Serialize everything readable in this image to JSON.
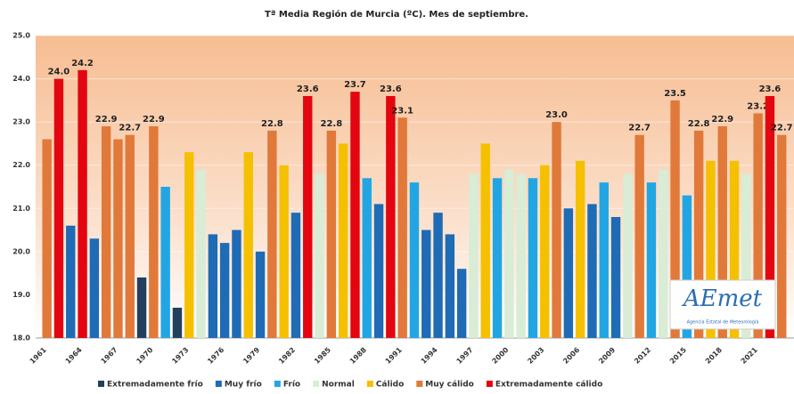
{
  "chart_data": {
    "type": "bar",
    "title": "Tª Media Región de Murcia (ºC). Mes de septiembre.",
    "categories": [
      "1961",
      null,
      null,
      "1964",
      null,
      null,
      "1967",
      null,
      null,
      "1970",
      null,
      null,
      "1973",
      null,
      null,
      "1976",
      null,
      null,
      "1979",
      null,
      null,
      "1982",
      null,
      null,
      "1985",
      null,
      null,
      "1988",
      null,
      null,
      "1991",
      null,
      null,
      "1994",
      null,
      null,
      "1997",
      null,
      null,
      "2000",
      null,
      null,
      "2003",
      null,
      null,
      "2006",
      null,
      null,
      "2009",
      null,
      null,
      "2012",
      null,
      null,
      "2015",
      null,
      null,
      "2018",
      null,
      null,
      "2021",
      null,
      null
    ],
    "values": [
      22.6,
      24.0,
      20.6,
      24.2,
      20.3,
      22.9,
      22.6,
      22.7,
      19.4,
      22.9,
      21.5,
      18.7,
      22.3,
      21.9,
      20.4,
      20.2,
      20.5,
      22.3,
      20.0,
      22.8,
      22.0,
      20.9,
      23.6,
      21.8,
      22.8,
      22.5,
      23.7,
      21.7,
      21.1,
      23.6,
      23.1,
      21.6,
      20.5,
      20.9,
      20.4,
      19.6,
      21.8,
      22.5,
      21.7,
      21.9,
      21.8,
      21.7,
      22.0,
      23.0,
      21.0,
      22.1,
      21.1,
      21.6,
      20.8,
      21.8,
      22.7,
      21.6,
      21.9,
      23.5,
      21.3,
      22.8,
      22.1,
      22.9,
      22.1,
      21.8,
      23.2,
      23.6,
      22.7
    ],
    "value_labels": [
      null,
      "24.0",
      null,
      "24.2",
      null,
      "22.9",
      null,
      "22.7",
      null,
      "22.9",
      null,
      null,
      null,
      null,
      null,
      null,
      null,
      null,
      null,
      "22.8",
      null,
      null,
      "23.6",
      null,
      "22.8",
      null,
      "23.7",
      null,
      null,
      "23.6",
      "23.1",
      null,
      null,
      null,
      null,
      null,
      null,
      null,
      null,
      null,
      null,
      null,
      null,
      "23.0",
      null,
      null,
      null,
      null,
      null,
      null,
      "22.7",
      null,
      null,
      "23.5",
      null,
      "22.8",
      null,
      "22.9",
      null,
      null,
      "23.2",
      "23.6",
      "22.7"
    ],
    "colors": [
      "#e0793a",
      "#e3050f",
      "#1f6bb5",
      "#e3050f",
      "#1f6bb5",
      "#e0793a",
      "#e0793a",
      "#e0793a",
      "#233f5e",
      "#e0793a",
      "#22a6e3",
      "#233f5e",
      "#f5c000",
      "#d9ecd5",
      "#1f6bb5",
      "#1f6bb5",
      "#1f6bb5",
      "#f5c000",
      "#1f6bb5",
      "#e0793a",
      "#f5c000",
      "#1f6bb5",
      "#e3050f",
      "#d9ecd5",
      "#e0793a",
      "#f5c000",
      "#e3050f",
      "#22a6e3",
      "#1f6bb5",
      "#e3050f",
      "#e0793a",
      "#22a6e3",
      "#1f6bb5",
      "#1f6bb5",
      "#1f6bb5",
      "#1f6bb5",
      "#d9ecd5",
      "#f5c000",
      "#22a6e3",
      "#d9ecd5",
      "#d9ecd5",
      "#22a6e3",
      "#f5c000",
      "#e0793a",
      "#1f6bb5",
      "#f5c000",
      "#1f6bb5",
      "#22a6e3",
      "#1f6bb5",
      "#d9ecd5",
      "#e0793a",
      "#22a6e3",
      "#d9ecd5",
      "#e0793a",
      "#22a6e3",
      "#e0793a",
      "#f5c000",
      "#e0793a",
      "#f5c000",
      "#d9ecd5",
      "#e0793a",
      "#e3050f",
      "#e0793a"
    ],
    "legend": [
      {
        "name": "Extremadamente frío",
        "color": "#233f5e"
      },
      {
        "name": "Muy frío",
        "color": "#1f6bb5"
      },
      {
        "name": "Frío",
        "color": "#22a6e3"
      },
      {
        "name": "Normal",
        "color": "#d9ecd5"
      },
      {
        "name": "Cálido",
        "color": "#f5c000"
      },
      {
        "name": "Muy cálido",
        "color": "#e0793a"
      },
      {
        "name": "Extremadamente cálido",
        "color": "#e3050f"
      }
    ],
    "ylim": [
      18,
      25
    ],
    "yticks": [
      {
        "value": 18,
        "label": "18.0"
      },
      {
        "value": 19,
        "label": "19.0"
      },
      {
        "value": 20,
        "label": "20.0"
      },
      {
        "value": 21,
        "label": "21.0"
      },
      {
        "value": 22,
        "label": "22.0"
      },
      {
        "value": 23,
        "label": "23.0"
      },
      {
        "value": 24,
        "label": "24.0"
      },
      {
        "value": 25,
        "label": "25.0"
      }
    ],
    "grid": true
  },
  "logo": {
    "name": "AEmet",
    "caption": "Agencia Estatal de Meteorología"
  }
}
